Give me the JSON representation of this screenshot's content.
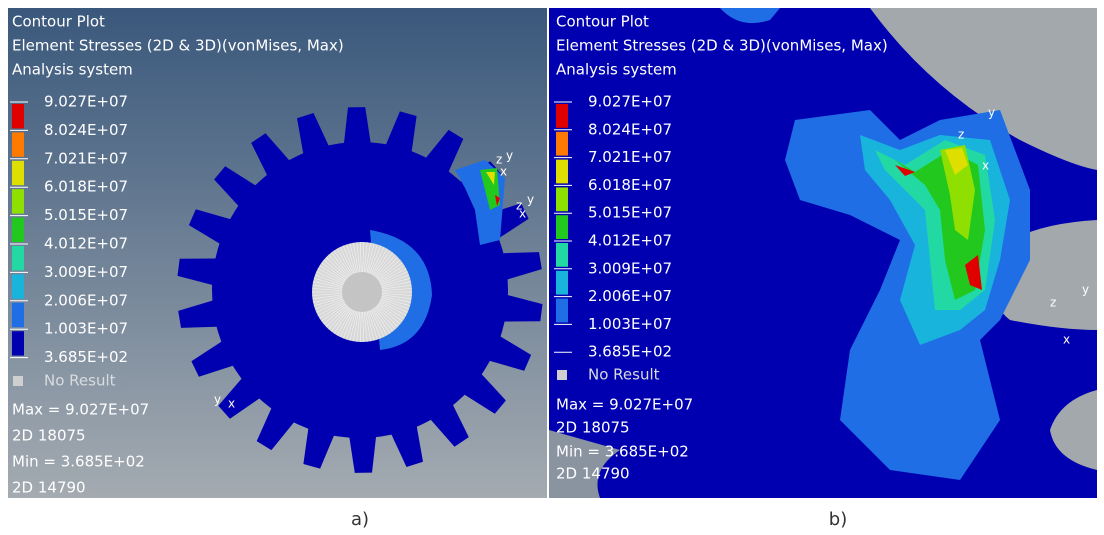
{
  "panels": [
    {
      "title_lines": [
        "Contour Plot",
        "Element Stresses (2D & 3D)(vonMises, Max)",
        "Analysis system"
      ],
      "legend": {
        "labels": [
          "9.027E+07",
          "8.024E+07",
          "7.021E+07",
          "6.018E+07",
          "5.015E+07",
          "4.012E+07",
          "3.009E+07",
          "2.006E+07",
          "1.003E+07",
          "3.685E+02"
        ],
        "colors": [
          "#e00000",
          "#ff7a00",
          "#dede00",
          "#8fe000",
          "#22c81e",
          "#22d9a4",
          "#18b4dc",
          "#1f6ee6",
          "#0000b0"
        ],
        "no_result": "No Result"
      },
      "info_lines": [
        "Max = 9.027E+07",
        "2D 18075",
        "Min = 3.685E+02",
        "2D 14790"
      ],
      "axis_labels": [
        "z",
        "y",
        "x",
        "z",
        "y",
        "x",
        "y",
        "x"
      ],
      "caption": "a)"
    },
    {
      "title_lines": [
        "Contour Plot",
        "Element Stresses (2D & 3D)(vonMises, Max)",
        "Analysis system"
      ],
      "legend": {
        "labels": [
          "9.027E+07",
          "8.024E+07",
          "7.021E+07",
          "6.018E+07",
          "5.015E+07",
          "4.012E+07",
          "3.009E+07",
          "2.006E+07",
          "1.003E+07",
          "3.685E+02"
        ],
        "colors": [
          "#e00000",
          "#ff7a00",
          "#dede00",
          "#8fe000",
          "#22c81e",
          "#22d9a4",
          "#18b4dc",
          "#1f6ee6",
          "#0000b0"
        ],
        "no_result": "No Result"
      },
      "info_lines": [
        "Max = 9.027E+07",
        "2D 18075",
        "Min = 3.685E+02",
        "2D 14790"
      ],
      "axis_labels": [
        "z",
        "y",
        "x",
        "z",
        "y",
        "x"
      ],
      "caption": "b)"
    }
  ]
}
